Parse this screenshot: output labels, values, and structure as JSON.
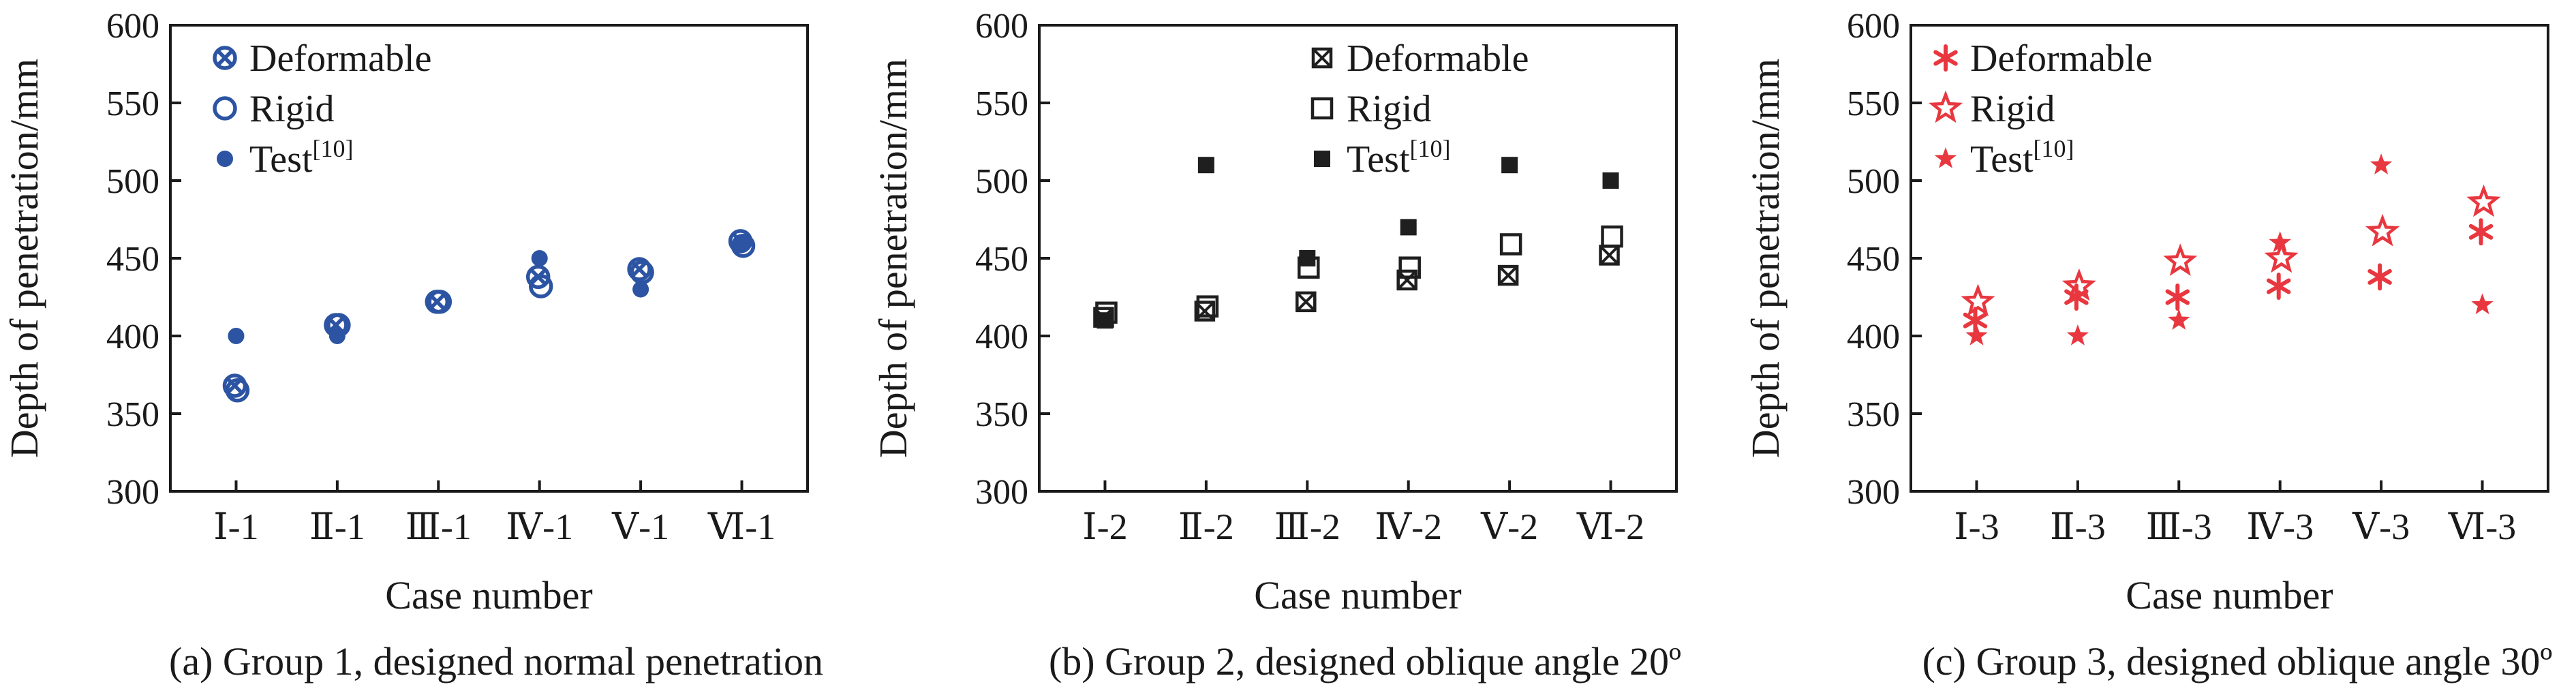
{
  "chart_data": [
    {
      "type": "scatter",
      "caption": "(a) Group 1, designed normal penetration",
      "xlabel": "Case number",
      "ylabel": "Depth of penetration/mm",
      "ylim": [
        300,
        600
      ],
      "yticks": [
        300,
        350,
        400,
        450,
        500,
        550,
        600
      ],
      "categories": [
        "Ⅰ-1",
        "Ⅱ-1",
        "Ⅲ-1",
        "Ⅳ-1",
        "Ⅴ-1",
        "Ⅵ-1"
      ],
      "color": "#2c54a3",
      "legend_position": "top-left",
      "series": [
        {
          "name": "Deformable",
          "marker": "circle-x",
          "values": [
            368,
            407,
            422,
            438,
            443,
            461
          ]
        },
        {
          "name": "Rigid",
          "marker": "open-circle",
          "values": [
            365,
            407,
            422,
            432,
            441,
            458
          ]
        },
        {
          "name": "Test",
          "name_sup": "[10]",
          "marker": "filled-circle",
          "values": [
            400,
            400,
            null,
            450,
            430,
            460
          ]
        }
      ]
    },
    {
      "type": "scatter",
      "caption": "(b) Group 2, designed oblique angle 20º",
      "xlabel": "Case number",
      "ylabel": "Depth of penetration/mm",
      "ylim": [
        300,
        600
      ],
      "yticks": [
        300,
        350,
        400,
        450,
        500,
        550,
        600
      ],
      "categories": [
        "Ⅰ-2",
        "Ⅱ-2",
        "Ⅲ-2",
        "Ⅳ-2",
        "Ⅴ-2",
        "Ⅵ-2"
      ],
      "color": "#1f1f1f",
      "legend_position": "top-right",
      "series": [
        {
          "name": "Deformable",
          "marker": "square-x",
          "values": [
            412,
            416,
            422,
            436,
            439,
            452
          ]
        },
        {
          "name": "Rigid",
          "marker": "open-square",
          "values": [
            415,
            419,
            444,
            444,
            459,
            464
          ]
        },
        {
          "name": "Test",
          "name_sup": "[10]",
          "marker": "filled-square",
          "values": [
            410,
            510,
            450,
            470,
            510,
            500
          ]
        }
      ]
    },
    {
      "type": "scatter",
      "caption": "(c) Group 3, designed oblique angle 30º",
      "xlabel": "Case number",
      "ylabel": "Depth of penetration/mm",
      "ylim": [
        300,
        600
      ],
      "yticks": [
        300,
        350,
        400,
        450,
        500,
        550,
        600
      ],
      "categories": [
        "Ⅰ-3",
        "Ⅱ-3",
        "Ⅲ-3",
        "Ⅳ-3",
        "Ⅴ-3",
        "Ⅵ-3"
      ],
      "color": "#e8373f",
      "legend_position": "top-left",
      "series": [
        {
          "name": "Deformable",
          "marker": "asterisk",
          "values": [
            410,
            425,
            425,
            432,
            438,
            467
          ]
        },
        {
          "name": "Rigid",
          "marker": "open-star",
          "values": [
            422,
            432,
            448,
            450,
            467,
            486
          ]
        },
        {
          "name": "Test",
          "name_sup": "[10]",
          "marker": "filled-star",
          "values": [
            400,
            400,
            410,
            460,
            510,
            420
          ]
        }
      ]
    }
  ]
}
